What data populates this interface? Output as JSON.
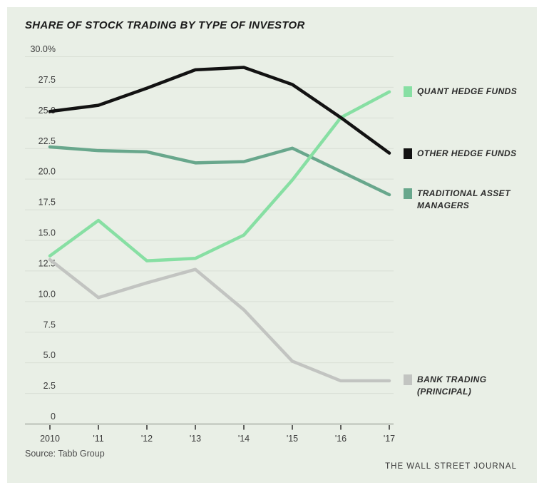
{
  "page": {
    "title": "SHARE OF STOCK TRADING BY TYPE OF INVESTOR",
    "source": "Source: Tabb Group",
    "footer": "THE WALL STREET JOURNAL"
  },
  "colors": {
    "panel_background": "#e9efe6",
    "page_margin": "#ffffff",
    "grid": "#d9dfd5",
    "axis": "#a9afa5",
    "tick": "#2f2f2f",
    "label": "#3b3b3b",
    "title_text": "#1b1b1b",
    "footer_text": "#3a3a3a"
  },
  "chart_data": {
    "type": "line",
    "title": "SHARE OF STOCK TRADING BY TYPE OF INVESTOR",
    "unit": "percent",
    "x": [
      2010,
      2011,
      2012,
      2013,
      2014,
      2015,
      2016,
      2017
    ],
    "x_tick_labels": [
      "2010",
      "'11",
      "'12",
      "'13",
      "'14",
      "'15",
      "'16",
      "'17"
    ],
    "y_ticks": [
      0,
      2.5,
      5,
      7.5,
      10,
      12.5,
      15,
      17.5,
      20,
      22.5,
      25,
      27.5,
      30
    ],
    "y_tick_labels": [
      "0",
      "2.5",
      "5.0",
      "7.5",
      "10.0",
      "12.5",
      "15.0",
      "17.5",
      "20.0",
      "22.5",
      "25.0",
      "27.5",
      "30.0%"
    ],
    "ylim": [
      0,
      30
    ],
    "grid": "horizontal",
    "legend_position": "right-of-line-ends",
    "z_order": [
      3,
      2,
      0,
      1
    ],
    "series": [
      {
        "name": "QUANT HEDGE FUNDS",
        "color": "#87dfa3",
        "values": [
          13.7,
          16.6,
          13.3,
          13.5,
          15.4,
          19.9,
          25.0,
          27.1
        ]
      },
      {
        "name": "OTHER HEDGE FUNDS",
        "color": "#121212",
        "values": [
          25.5,
          26.0,
          27.4,
          28.9,
          29.1,
          27.7,
          25.0,
          22.1
        ]
      },
      {
        "name": "TRADITIONAL ASSET MANAGERS",
        "color": "#68a78c",
        "values": [
          22.6,
          22.3,
          22.2,
          21.3,
          21.4,
          22.5,
          20.6,
          18.7
        ]
      },
      {
        "name": "BANK TRADING (PRINCIPAL)",
        "color": "#c2c4c1",
        "values": [
          13.4,
          10.3,
          11.5,
          12.6,
          9.3,
          5.1,
          3.5,
          3.5
        ]
      }
    ]
  },
  "legend": {
    "items": [
      {
        "series_index": 0,
        "lines": [
          "QUANT HEDGE FUNDS"
        ]
      },
      {
        "series_index": 1,
        "lines": [
          "OTHER HEDGE FUNDS"
        ]
      },
      {
        "series_index": 2,
        "lines": [
          "TRADITIONAL ASSET",
          "MANAGERS"
        ]
      },
      {
        "series_index": 3,
        "lines": [
          "BANK TRADING",
          "(PRINCIPAL)"
        ]
      }
    ]
  }
}
